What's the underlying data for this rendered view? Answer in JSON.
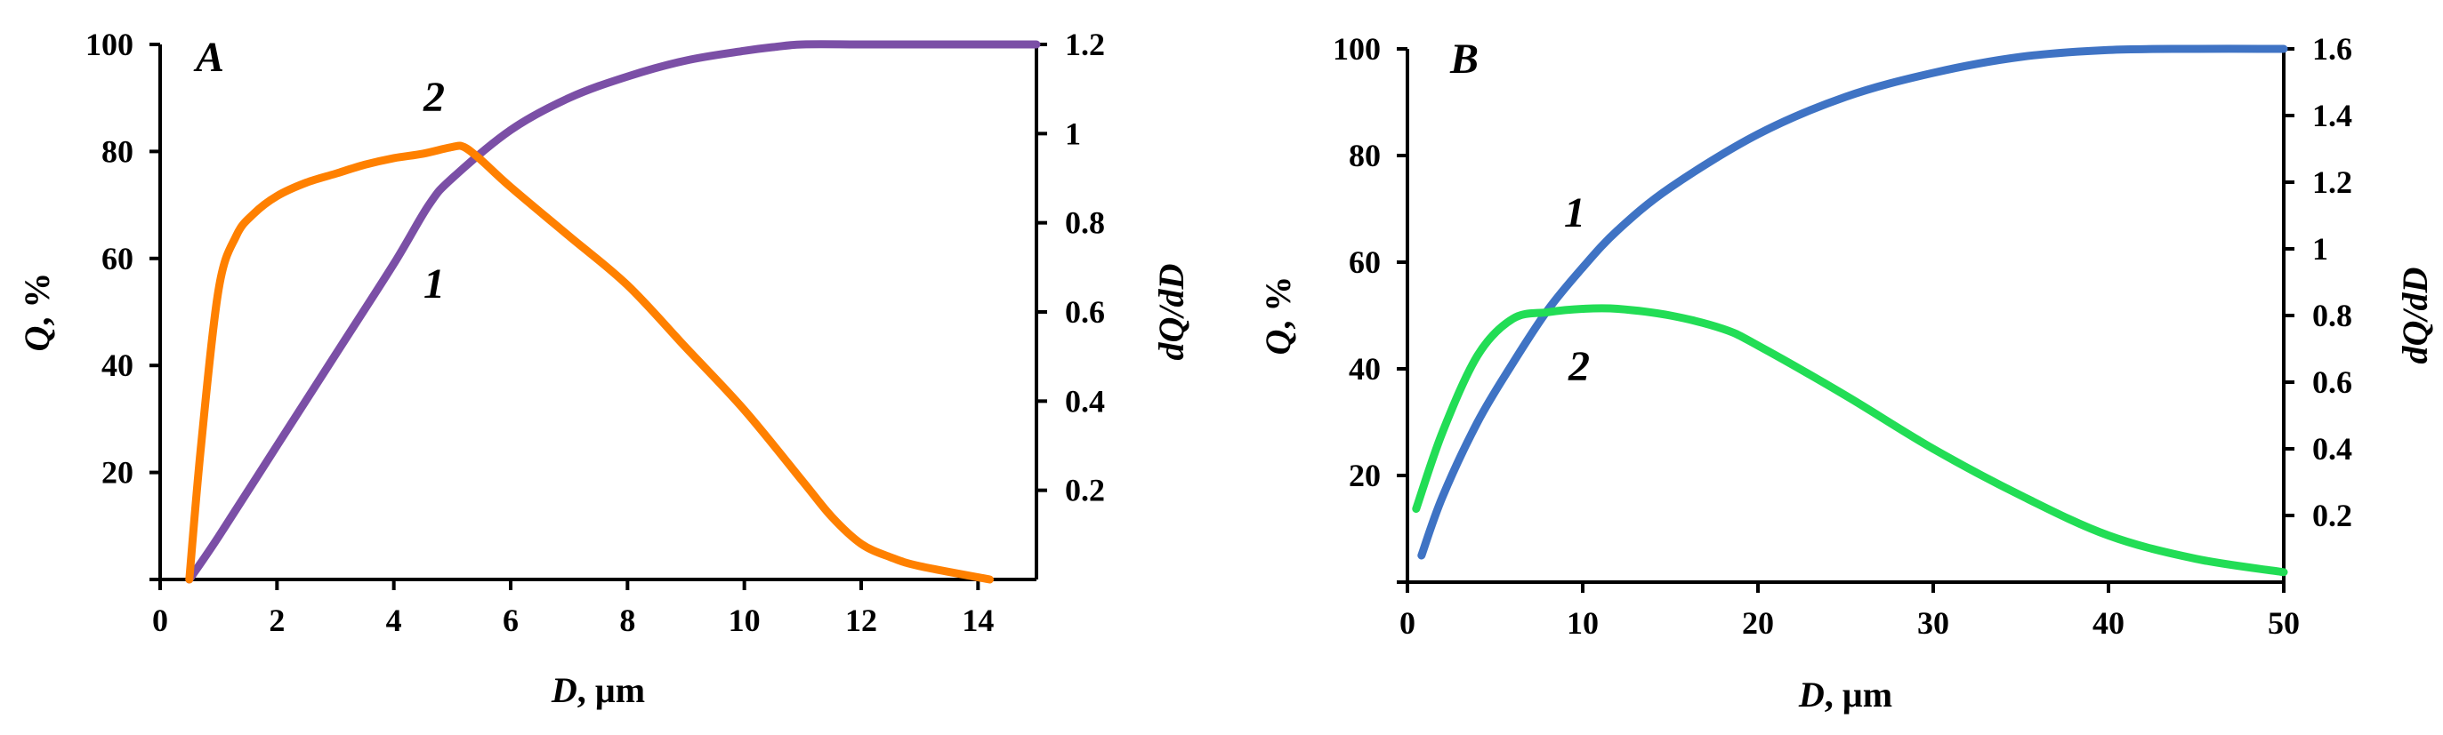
{
  "chart_data": [
    {
      "type": "line",
      "panel": "A",
      "xlabel": "D, µm",
      "ylabel": "Q, %",
      "y2label": "dQ/dD",
      "xlim": [
        0,
        15
      ],
      "ylim": [
        0,
        100
      ],
      "y2lim": [
        0,
        1.2
      ],
      "xticks": [
        0,
        2,
        4,
        6,
        8,
        10,
        12,
        14
      ],
      "yticks": [
        20,
        40,
        60,
        80,
        100
      ],
      "y2ticks": [
        0.2,
        0.4,
        0.6,
        0.8,
        1,
        1.2
      ],
      "y2tick_labels": [
        "0.2",
        "0.4",
        "0.6",
        "0.8",
        "1",
        "1.2"
      ],
      "grid": false,
      "series": [
        {
          "name": "1",
          "axis": "left",
          "color": "#7B4FA6",
          "x": [
            0.5,
            1,
            2,
            3,
            4,
            4.6,
            5,
            6,
            7,
            8,
            9,
            10,
            10.5,
            11,
            12,
            13,
            14,
            15
          ],
          "y": [
            0,
            8,
            25,
            42,
            59,
            70,
            75,
            84,
            90,
            94,
            97,
            98.8,
            99.5,
            100,
            100,
            100,
            100,
            100
          ]
        },
        {
          "name": "2",
          "axis": "right",
          "color": "#FF8000",
          "x": [
            0.5,
            0.7,
            1,
            1.3,
            1.6,
            2,
            2.5,
            3,
            3.5,
            4,
            4.5,
            5,
            5.2,
            5.5,
            6,
            7,
            8,
            9,
            10,
            11,
            11.5,
            12,
            12.5,
            13,
            14.2
          ],
          "y": [
            0,
            0.3,
            0.65,
            0.77,
            0.82,
            0.86,
            0.89,
            0.91,
            0.93,
            0.945,
            0.955,
            0.97,
            0.97,
            0.94,
            0.88,
            0.77,
            0.66,
            0.52,
            0.38,
            0.22,
            0.14,
            0.08,
            0.05,
            0.03,
            0.0
          ]
        }
      ]
    },
    {
      "type": "line",
      "panel": "B",
      "xlabel": "D, µm",
      "ylabel": "Q, %",
      "y2label": "dQ/dD",
      "xlim": [
        0,
        50
      ],
      "ylim": [
        0,
        100
      ],
      "y2lim": [
        0,
        1.6
      ],
      "xticks": [
        0,
        10,
        20,
        30,
        40,
        50
      ],
      "yticks": [
        20,
        40,
        60,
        80,
        100
      ],
      "y2ticks": [
        0.2,
        0.4,
        0.6,
        0.8,
        1,
        1.2,
        1.4,
        1.6
      ],
      "y2tick_labels": [
        "0.2",
        "0.4",
        "0.6",
        "0.8",
        "1",
        "1.2",
        "1.4",
        "1.6"
      ],
      "grid": false,
      "series": [
        {
          "name": "1",
          "axis": "left",
          "color": "#3F73C4",
          "x": [
            0.8,
            2,
            4,
            6,
            8,
            10,
            12,
            15,
            20,
            25,
            30,
            35,
            40,
            45,
            50
          ],
          "y": [
            5,
            16,
            30,
            41,
            51,
            59,
            66,
            74,
            84,
            91,
            95.5,
            98.5,
            99.8,
            100,
            100
          ]
        },
        {
          "name": "2",
          "axis": "right",
          "color": "#22DD55",
          "x": [
            0.5,
            2,
            4,
            6,
            8,
            10,
            12,
            15,
            18,
            20,
            25,
            30,
            35,
            40,
            45,
            50
          ],
          "y": [
            0.22,
            0.45,
            0.68,
            0.79,
            0.81,
            0.82,
            0.82,
            0.8,
            0.76,
            0.71,
            0.56,
            0.4,
            0.26,
            0.14,
            0.07,
            0.03
          ]
        }
      ]
    }
  ],
  "curve_labels": {
    "A": [
      {
        "text": "1",
        "series": "1"
      },
      {
        "text": "2",
        "series": "2"
      }
    ],
    "B": [
      {
        "text": "1",
        "series": "1"
      },
      {
        "text": "2",
        "series": "2"
      }
    ]
  }
}
